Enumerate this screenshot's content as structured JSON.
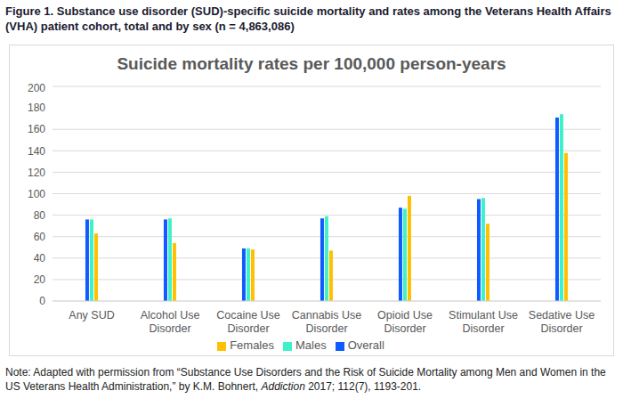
{
  "caption": "Figure 1. Substance use disorder (SUD)-specific suicide mortality and rates among the Veterans Health Affairs (VHA) patient cohort, total and by sex (n = 4,863,086)",
  "note": [
    "Note: Adapted with permission from “Substance Use Disorders and the Risk of Suicide Mortality among Men and Women in the US Veterans Health Administration,” by K.M. Bohnert, ",
    "Addiction",
    " 2017; 112(7), 1193-201."
  ],
  "chart_data": {
    "type": "bar",
    "title": "Suicide mortality rates per 100,000 person-years",
    "categories": [
      "Any SUD",
      "Alcohol Use Disorder",
      "Cocaine Use Disorder",
      "Cannabis Use Disorder",
      "Opioid Use Disorder",
      "Stimulant Use Disorder",
      "Sedative Use Disorder"
    ],
    "series": [
      {
        "name": "Overall",
        "color": "#0f5bff",
        "values": [
          76,
          76,
          49,
          77,
          87,
          95,
          171
        ]
      },
      {
        "name": "Males",
        "color": "#3df2c8",
        "values": [
          76,
          77,
          49,
          79,
          86,
          96,
          174
        ]
      },
      {
        "name": "Females",
        "color": "#ffc000",
        "values": [
          63,
          54,
          48,
          47,
          98,
          72,
          138
        ]
      }
    ],
    "ylim": [
      0,
      200
    ],
    "yticks": [
      0,
      20,
      40,
      60,
      80,
      100,
      120,
      140,
      160,
      180,
      200
    ],
    "grid": true,
    "legend": "bottom"
  }
}
